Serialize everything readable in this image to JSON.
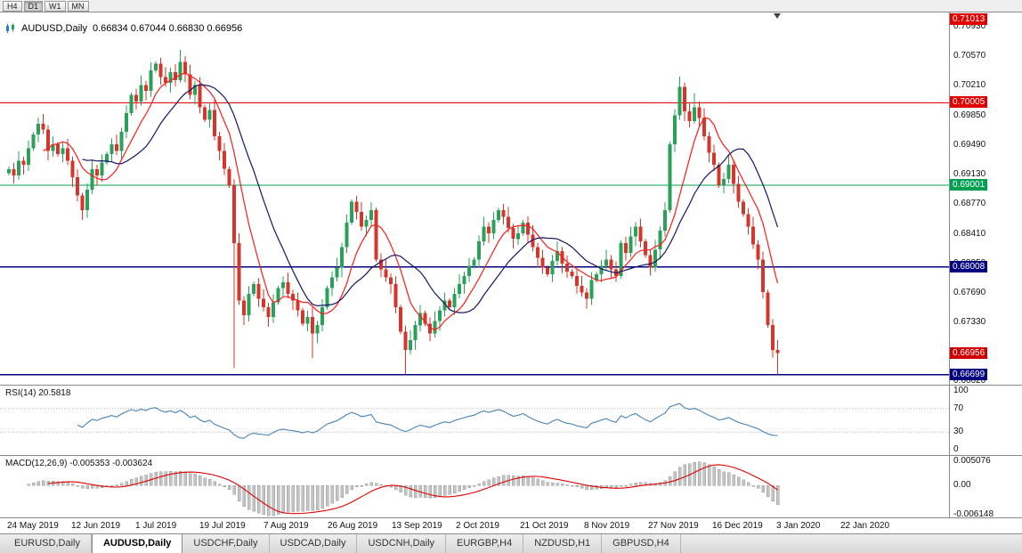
{
  "timeframe_bar": {
    "buttons": [
      {
        "label": "H4",
        "active": false
      },
      {
        "label": "D1",
        "active": true
      },
      {
        "label": "W1",
        "active": false
      },
      {
        "label": "MN",
        "active": false
      }
    ]
  },
  "chart_header": {
    "title": "AUDUSD,Daily",
    "ohlc": "0.66834 0.67044 0.66830 0.66956"
  },
  "indicator_labels": {
    "rsi": "RSI(14) 20.5818",
    "macd": "MACD(12,26,9) -0.005353 -0.003624"
  },
  "price_axis": {
    "ticks": [
      "0.70930",
      "0.70570",
      "0.70210",
      "0.69850",
      "0.69490",
      "0.69130",
      "0.68770",
      "0.68410",
      "0.68050",
      "0.67690",
      "0.67330",
      "0.66970",
      "0.66620"
    ],
    "badges": [
      {
        "label": "0.71013",
        "price": 0.71013,
        "color": "#e00000",
        "name": "level-badge-0-71013"
      },
      {
        "label": "0.70005",
        "price": 0.70005,
        "color": "#e00000",
        "name": "level-badge-0-70005"
      },
      {
        "label": "0.69001",
        "price": 0.69001,
        "color": "#00a050",
        "name": "level-badge-0-69001"
      },
      {
        "label": "0.68008",
        "price": 0.68008,
        "color": "#000080",
        "name": "level-badge-0-68008"
      },
      {
        "label": "0.66956",
        "price": 0.66956,
        "color": "#d00000",
        "name": "current-price-badge"
      },
      {
        "label": "0.66699",
        "price": 0.66699,
        "color": "#000080",
        "name": "level-badge-0-66699"
      }
    ]
  },
  "rsi_axis": [
    {
      "label": "100",
      "value": 100
    },
    {
      "label": "70",
      "value": 70
    },
    {
      "label": "30",
      "value": 30
    },
    {
      "label": "0",
      "value": 0
    }
  ],
  "macd_axis": [
    {
      "label": "0.005076",
      "value": 0.005076
    },
    {
      "label": "0.00",
      "value": 0
    },
    {
      "label": "-0.006148",
      "value": -0.006148
    }
  ],
  "date_axis": [
    "24 May 2019",
    "12 Jun 2019",
    "1 Jul 2019",
    "19 Jul 2019",
    "7 Aug 2019",
    "26 Aug 2019",
    "13 Sep 2019",
    "2 Oct 2019",
    "21 Oct 2019",
    "8 Nov 2019",
    "27 Nov 2019",
    "16 Dec 2019",
    "3 Jan 2020",
    "22 Jan 2020"
  ],
  "tabs": [
    {
      "label": "EURUSD,Daily",
      "active": false
    },
    {
      "label": "AUDUSD,Daily",
      "active": true
    },
    {
      "label": "USDCHF,Daily",
      "active": false
    },
    {
      "label": "USDCAD,Daily",
      "active": false
    },
    {
      "label": "USDCNH,Daily",
      "active": false
    },
    {
      "label": "EURGBP,H4",
      "active": false
    },
    {
      "label": "NZDUSD,H1",
      "active": false
    },
    {
      "label": "GBPUSD,H4",
      "active": false
    }
  ],
  "chart_data": {
    "type": "candlestick",
    "symbol": "AUDUSD",
    "timeframe": "Daily",
    "current_bar": {
      "open": 0.66834,
      "high": 0.67044,
      "low": 0.6683,
      "close": 0.66956
    },
    "y_axis": {
      "min": 0.6662,
      "max": 0.7093,
      "tick_step": 0.0036
    },
    "open_first": 0.6915,
    "closes": [
      0.692,
      0.6912,
      0.693,
      0.6925,
      0.6945,
      0.6962,
      0.6975,
      0.6968,
      0.6942,
      0.695,
      0.6938,
      0.6945,
      0.693,
      0.691,
      0.6888,
      0.687,
      0.6895,
      0.692,
      0.6912,
      0.6928,
      0.6938,
      0.695,
      0.6942,
      0.6965,
      0.6988,
      0.701,
      0.7002,
      0.7022,
      0.7015,
      0.704,
      0.7048,
      0.7032,
      0.7025,
      0.7038,
      0.7028,
      0.705,
      0.7035,
      0.701,
      0.7022,
      0.6995,
      0.698,
      0.6992,
      0.696,
      0.6942,
      0.692,
      0.69,
      0.683,
      0.676,
      0.6742,
      0.6768,
      0.678,
      0.6762,
      0.6752,
      0.674,
      0.6758,
      0.6775,
      0.6782,
      0.6768,
      0.676,
      0.6748,
      0.6732,
      0.674,
      0.672,
      0.673,
      0.6752,
      0.6775,
      0.6788,
      0.68,
      0.6825,
      0.6855,
      0.688,
      0.6868,
      0.685,
      0.6858,
      0.687,
      0.681,
      0.6798,
      0.6788,
      0.678,
      0.6752,
      0.6722,
      0.67,
      0.6712,
      0.673,
      0.6745,
      0.6732,
      0.672,
      0.6735,
      0.6748,
      0.676,
      0.6752,
      0.6768,
      0.678,
      0.679,
      0.6802,
      0.681,
      0.6832,
      0.685,
      0.6842,
      0.6858,
      0.687,
      0.6862,
      0.6848,
      0.6835,
      0.6842,
      0.6855,
      0.684,
      0.6825,
      0.6812,
      0.68,
      0.6792,
      0.6808,
      0.682,
      0.6805,
      0.6795,
      0.679,
      0.6778,
      0.677,
      0.6762,
      0.6785,
      0.6792,
      0.6802,
      0.681,
      0.6798,
      0.679,
      0.683,
      0.6818,
      0.6838,
      0.685,
      0.6832,
      0.6815,
      0.68,
      0.6822,
      0.6845,
      0.687,
      0.695,
      0.6985,
      0.702,
      0.699,
      0.6978,
      0.6995,
      0.6982,
      0.696,
      0.694,
      0.6925,
      0.69,
      0.6908,
      0.6925,
      0.6902,
      0.688,
      0.6865,
      0.685,
      0.6828,
      0.681,
      0.677,
      0.673,
      0.67,
      0.6696
    ],
    "wick_highs": {
      "35": 0.7065,
      "137": 0.7032,
      "140": 0.7012
    },
    "wick_lows": {
      "15": 0.6858,
      "46": 0.6678,
      "62": 0.669,
      "81": 0.667,
      "157": 0.667
    },
    "horizontal_lines": [
      {
        "price": 0.70005,
        "color": "#e00000"
      },
      {
        "price": 0.69001,
        "color": "#00a050"
      },
      {
        "price": 0.68008,
        "color": "#000080"
      },
      {
        "price": 0.66699,
        "color": "#000080"
      }
    ],
    "moving_averages": [
      {
        "type": "sma",
        "period": 8,
        "color": "#ff1a1a"
      },
      {
        "type": "sma",
        "period": 16,
        "color": "#151565"
      }
    ],
    "colors": {
      "up": "#2aa05a",
      "down": "#d6352b",
      "background": "#ffffff"
    },
    "rsi": {
      "period": 14,
      "current": 20.5818,
      "levels": [
        70,
        30
      ],
      "color": "#4682b4",
      "range": [
        0,
        100
      ]
    },
    "macd": {
      "fast": 12,
      "slow": 26,
      "signal": 9,
      "current_macd": -0.005353,
      "current_signal": -0.003624,
      "histogram_color": "#c4c4c4",
      "signal_color": "#e00000",
      "range": [
        -0.006148,
        0.005076
      ]
    }
  }
}
